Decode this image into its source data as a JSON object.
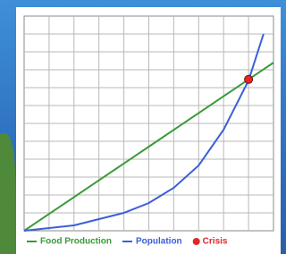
{
  "chart_data": {
    "type": "line",
    "x": [
      0,
      1,
      2,
      3,
      4,
      5,
      6,
      7,
      8,
      9,
      9.6,
      10
    ],
    "series": [
      {
        "name": "Food Production",
        "color": "#3a9a3a",
        "values": [
          0,
          0.94,
          1.88,
          2.82,
          3.76,
          4.7,
          5.64,
          6.58,
          7.52,
          8.46,
          9.02,
          9.4
        ]
      },
      {
        "name": "Population",
        "color": "#3a5fd8",
        "values": [
          0,
          0.15,
          0.3,
          0.65,
          1.0,
          1.55,
          2.4,
          3.65,
          5.65,
          8.4,
          11,
          null
        ]
      }
    ],
    "crisis": {
      "name": "Crisis",
      "color": "#e02828",
      "x": 9,
      "y": 8.46
    },
    "xlim": [
      0,
      10
    ],
    "ylim": [
      0,
      12
    ],
    "grid": true
  }
}
